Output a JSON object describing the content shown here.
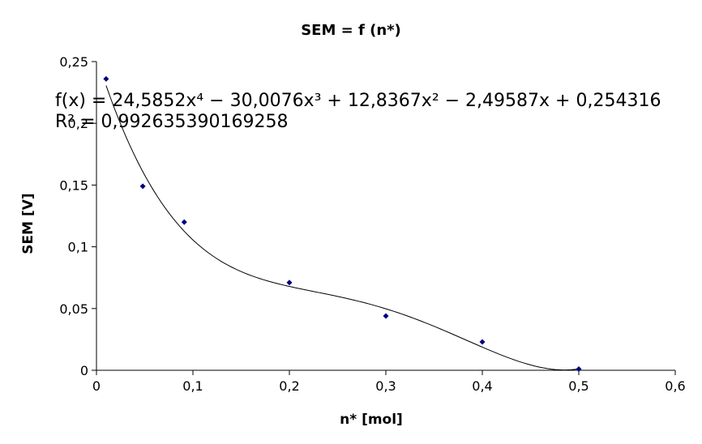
{
  "chart_data": {
    "type": "scatter",
    "title": "SEM = f (n*)",
    "xlabel": "n* [mol]",
    "ylabel": "SEM [V]",
    "xlim": [
      0,
      0.6
    ],
    "ylim": [
      0,
      0.25
    ],
    "x_ticks": [
      "0",
      "0,1",
      "0,2",
      "0,3",
      "0,4",
      "0,5",
      "0,6"
    ],
    "y_ticks": [
      "0",
      "0,05",
      "0,1",
      "0,15",
      "0,2",
      "0,25"
    ],
    "grid": false,
    "legend": "none",
    "marker_color": "#000080",
    "series": [
      {
        "x": [
          0.01,
          0.048,
          0.091,
          0.2,
          0.3,
          0.4,
          0.5
        ],
        "y": [
          0.236,
          0.149,
          0.12,
          0.071,
          0.044,
          0.023,
          0.001
        ]
      }
    ],
    "trendline": {
      "type": "polynomial",
      "order": 4,
      "coefficients": [
        24.5852,
        -30.0076,
        12.8367,
        -2.49587,
        0.254316
      ],
      "x_range": [
        0.01,
        0.5
      ],
      "equation_label": "f(x) = 24,5852x⁴ − 30,0076x³ + 12,8367x² − 2,49587x + 0,254316",
      "r2_label": "R² = 0,992635390169258"
    }
  }
}
